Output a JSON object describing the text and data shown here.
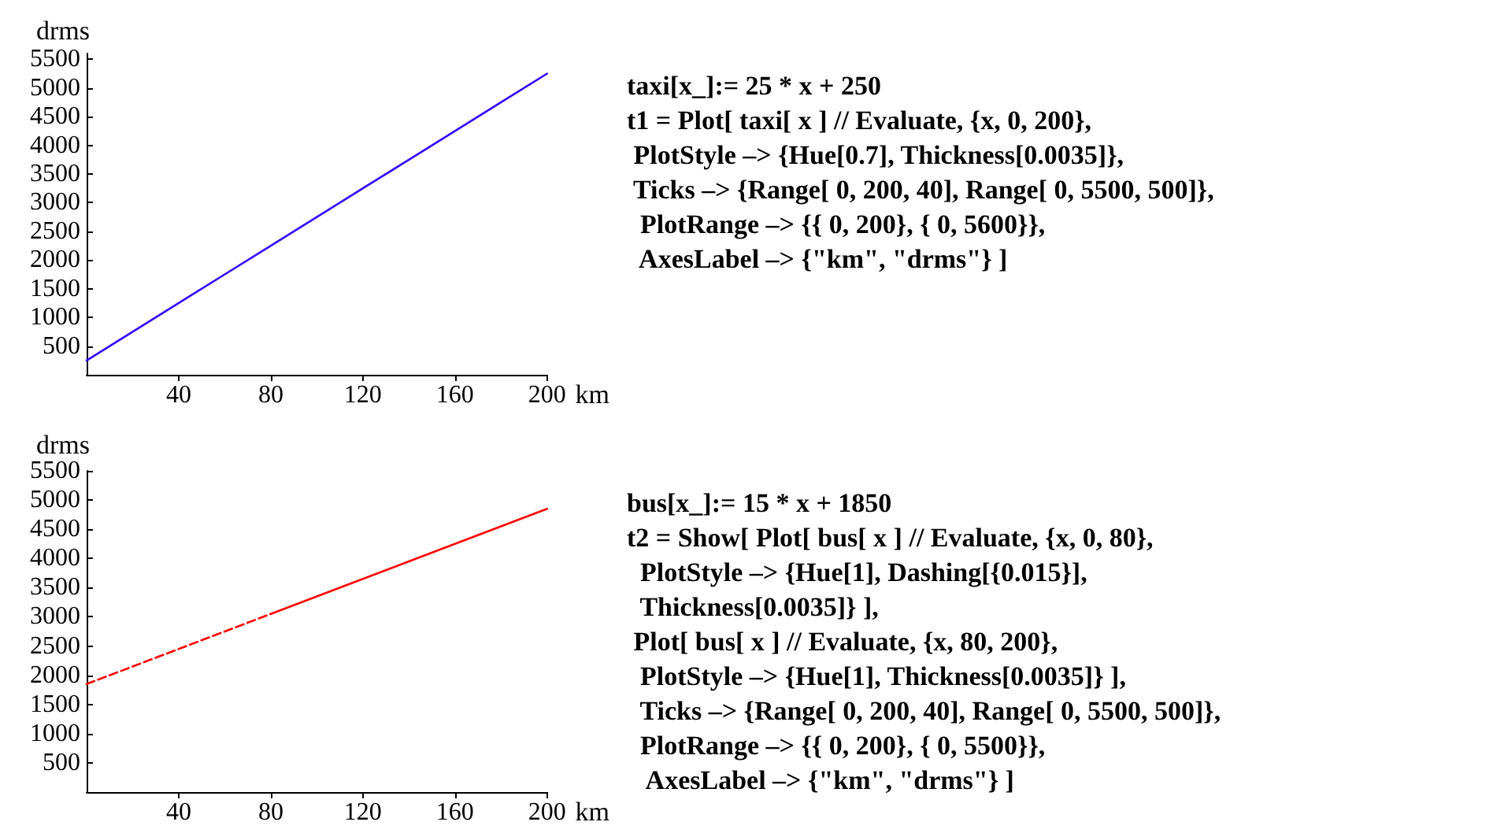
{
  "chart_data": [
    {
      "type": "line",
      "xlabel": "km",
      "ylabel": "drms",
      "xlim": [
        0,
        200
      ],
      "ylim": [
        0,
        5600
      ],
      "xticks": [
        40,
        80,
        120,
        160,
        200
      ],
      "yticks": [
        500,
        1000,
        1500,
        2000,
        2500,
        3000,
        3500,
        4000,
        4500,
        5000,
        5500
      ],
      "grid": false,
      "series": [
        {
          "color": "#3300ff",
          "x": [
            0,
            20,
            40,
            60,
            80,
            100,
            120,
            140,
            160,
            180,
            200
          ],
          "values": [
            250,
            750,
            1250,
            1750,
            2250,
            2750,
            3250,
            3750,
            4250,
            4750,
            5250
          ]
        }
      ]
    },
    {
      "type": "other",
      "annotations": [
        "taxi[x_]:= 25 * x + 250",
        "t1 = Plot[ taxi[ x ] // Evaluate, {x, 0, 200},",
        " PlotStyle –> {Hue[0.7], Thickness[0.0035]},",
        " Ticks –> {Range[ 0, 200, 40], Range[ 0, 5500, 500]},",
        "  PlotRange –> {{ 0, 200}, { 0, 5600}},",
        "  AxesLabel –> {\"km\", \"drms\"} ]"
      ]
    },
    {
      "type": "line",
      "xlabel": "km",
      "ylabel": "drms",
      "xlim": [
        0,
        200
      ],
      "ylim": [
        0,
        5500
      ],
      "xticks": [
        40,
        80,
        120,
        160,
        200
      ],
      "yticks": [
        500,
        1000,
        1500,
        2000,
        2500,
        3000,
        3500,
        4000,
        4500,
        5000,
        5500
      ],
      "grid": false,
      "series": [
        {
          "color": "#ff0000",
          "line_style": "dashed",
          "x": [
            0,
            20,
            40,
            60,
            80
          ],
          "values": [
            1850,
            2150,
            2450,
            2750,
            3050
          ]
        },
        {
          "color": "#ff0000",
          "line_style": "solid",
          "x": [
            80,
            100,
            120,
            140,
            160,
            180,
            200
          ],
          "values": [
            3050,
            3350,
            3650,
            3950,
            4250,
            4550,
            4850
          ]
        }
      ]
    },
    {
      "type": "other",
      "annotations": [
        "bus[x_]:= 15 * x + 1850",
        "t2 = Show[ Plot[ bus[ x ] // Evaluate, {x, 0, 80},",
        "  PlotStyle –> {Hue[1], Dashing[{0.015}],",
        "  Thickness[0.0035]} ],",
        " Plot[ bus[ x ] // Evaluate, {x, 80, 200},",
        "  PlotStyle –> {Hue[1], Thickness[0.0035]} ],",
        "  Ticks –> {Range[ 0, 200, 40], Range[ 0, 5500, 500]},",
        "  PlotRange –> {{ 0, 200}, { 0, 5500}},",
        "   AxesLabel –> {\"km\", \"drms\"} ]"
      ]
    }
  ]
}
